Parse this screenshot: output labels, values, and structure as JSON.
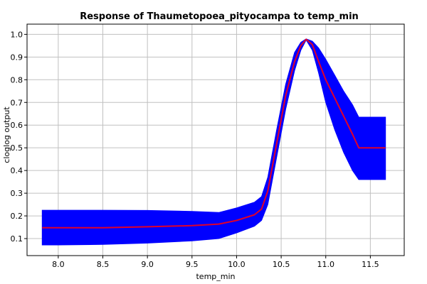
{
  "chart_data": {
    "type": "line",
    "title": "Response of Thaumetopoea_pityocampa to temp_min",
    "xlabel": "temp_min",
    "ylabel": "cloglog output",
    "xlim": [
      7.65,
      11.88
    ],
    "ylim": [
      0.025,
      1.045
    ],
    "x_ticks": [
      "8.0",
      "8.5",
      "9.0",
      "9.5",
      "10.0",
      "10.5",
      "11.0",
      "11.5"
    ],
    "y_ticks": [
      "0.1",
      "0.2",
      "0.3",
      "0.4",
      "0.5",
      "0.6",
      "0.7",
      "0.8",
      "0.9",
      "1.0"
    ],
    "grid": true,
    "colors": {
      "band": "#0000ff",
      "line": "#e0002a",
      "grid": "#c0c0c0"
    },
    "series": [
      {
        "role": "mean",
        "x": [
          7.82,
          8.0,
          8.5,
          9.0,
          9.5,
          9.8,
          10.0,
          10.2,
          10.28,
          10.35,
          10.45,
          10.55,
          10.65,
          10.72,
          10.78,
          10.85,
          10.92,
          11.0,
          11.1,
          11.2,
          11.3,
          11.37,
          11.5,
          11.67
        ],
        "y": [
          0.148,
          0.148,
          0.148,
          0.152,
          0.157,
          0.164,
          0.18,
          0.205,
          0.23,
          0.31,
          0.52,
          0.73,
          0.88,
          0.95,
          0.978,
          0.955,
          0.88,
          0.8,
          0.72,
          0.64,
          0.56,
          0.5,
          0.5,
          0.5
        ]
      },
      {
        "role": "upper",
        "x": [
          7.82,
          8.0,
          8.5,
          9.0,
          9.5,
          9.8,
          10.0,
          10.2,
          10.28,
          10.35,
          10.45,
          10.55,
          10.65,
          10.72,
          10.78,
          10.85,
          10.92,
          11.0,
          11.1,
          11.2,
          11.3,
          11.37,
          11.5,
          11.67
        ],
        "y": [
          0.225,
          0.225,
          0.225,
          0.224,
          0.22,
          0.215,
          0.235,
          0.26,
          0.285,
          0.37,
          0.58,
          0.78,
          0.92,
          0.965,
          0.98,
          0.97,
          0.94,
          0.89,
          0.82,
          0.75,
          0.69,
          0.635,
          0.635,
          0.635
        ]
      },
      {
        "role": "lower",
        "x": [
          7.82,
          8.0,
          8.5,
          9.0,
          9.5,
          9.8,
          10.0,
          10.2,
          10.28,
          10.35,
          10.45,
          10.55,
          10.65,
          10.72,
          10.78,
          10.85,
          10.92,
          11.0,
          11.1,
          11.2,
          11.3,
          11.37,
          11.5,
          11.67
        ],
        "y": [
          0.072,
          0.072,
          0.074,
          0.08,
          0.09,
          0.1,
          0.125,
          0.155,
          0.18,
          0.25,
          0.46,
          0.67,
          0.84,
          0.93,
          0.975,
          0.93,
          0.83,
          0.7,
          0.58,
          0.48,
          0.4,
          0.36,
          0.36,
          0.36
        ]
      }
    ]
  }
}
